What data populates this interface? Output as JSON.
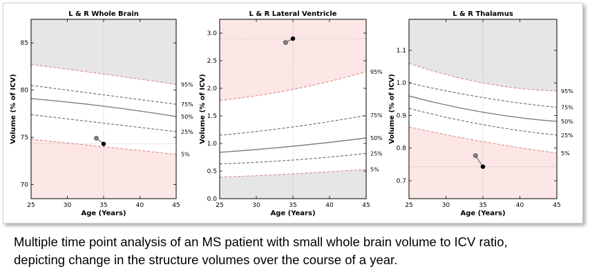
{
  "chart_data": [
    {
      "type": "line",
      "title": "L & R Whole Brain",
      "xlabel": "Age (Years)",
      "ylabel": "Volume (% of ICV)",
      "xlim": [
        25,
        45
      ],
      "ylim": [
        68.5,
        87.5
      ],
      "xticks": [
        25,
        30,
        35,
        40,
        45
      ],
      "yticks": [
        70,
        75,
        80,
        85
      ],
      "ytick_labels": [
        "70",
        "75",
        "80",
        "85"
      ],
      "grid": false,
      "crosshair": {
        "x": 35,
        "y": 74.3
      },
      "percentiles": [
        {
          "name": "95%",
          "values": [
            82.7,
            81.7,
            80.6
          ]
        },
        {
          "name": "75%",
          "values": [
            80.5,
            79.5,
            78.5
          ]
        },
        {
          "name": "50%",
          "values": [
            79.1,
            78.3,
            77.2
          ]
        },
        {
          "name": "25%",
          "values": [
            77.4,
            76.5,
            75.6
          ]
        },
        {
          "name": "5%",
          "values": [
            74.8,
            74.0,
            73.2
          ]
        }
      ],
      "series": [
        {
          "x": [
            34,
            35
          ],
          "y": [
            74.9,
            74.3
          ]
        }
      ]
    },
    {
      "type": "line",
      "title": "L & R Lateral Ventricle",
      "xlabel": "Age (Years)",
      "ylabel": "Volume (% of ICV)",
      "xlim": [
        25,
        45
      ],
      "ylim": [
        0,
        3.25
      ],
      "xticks": [
        25,
        30,
        35,
        40,
        45
      ],
      "yticks": [
        0,
        0.5,
        1,
        1.5,
        2,
        2.5,
        3
      ],
      "ytick_labels": [
        "0.0",
        "0.5",
        "1.0",
        "1.5",
        "2.0",
        "2.5",
        "3.0"
      ],
      "grid": false,
      "crosshair": {
        "x": 35,
        "y": 2.9
      },
      "percentiles": [
        {
          "name": "95%",
          "values": [
            1.78,
            1.98,
            2.3
          ]
        },
        {
          "name": "75%",
          "values": [
            1.15,
            1.3,
            1.51
          ]
        },
        {
          "name": "50%",
          "values": [
            0.84,
            0.95,
            1.1
          ]
        },
        {
          "name": "25%",
          "values": [
            0.63,
            0.7,
            0.82
          ]
        },
        {
          "name": "5%",
          "values": [
            0.39,
            0.45,
            0.53
          ]
        }
      ],
      "series": [
        {
          "x": [
            34,
            35
          ],
          "y": [
            2.83,
            2.9
          ]
        }
      ]
    },
    {
      "type": "line",
      "title": "L & R Thalamus",
      "xlabel": "Age (Years)",
      "ylabel": "Volume (% of ICV)",
      "xlim": [
        25,
        45
      ],
      "ylim": [
        0.645,
        1.195
      ],
      "xticks": [
        25,
        30,
        35,
        40,
        45
      ],
      "yticks": [
        0.7,
        0.8,
        0.9,
        1.0,
        1.1
      ],
      "ytick_labels": [
        "0.7",
        "0.8",
        "0.9",
        "1.0",
        "1.1"
      ],
      "grid": false,
      "crosshair": {
        "x": 35,
        "y": 0.743
      },
      "percentiles": [
        {
          "name": "95%",
          "values": [
            1.06,
            1.0,
            0.975
          ]
        },
        {
          "name": "75%",
          "values": [
            1.0,
            0.955,
            0.925
          ]
        },
        {
          "name": "50%",
          "values": [
            0.96,
            0.91,
            0.882
          ]
        },
        {
          "name": "25%",
          "values": [
            0.922,
            0.872,
            0.84
          ]
        },
        {
          "name": "5%",
          "values": [
            0.865,
            0.82,
            0.785
          ]
        }
      ],
      "series": [
        {
          "x": [
            34,
            35
          ],
          "y": [
            0.777,
            0.743
          ]
        }
      ]
    }
  ],
  "style": {
    "upper_band_color": "#e6e6e6",
    "lower_band_color": "#fde6e6",
    "median_line_color": "#7f7f7f",
    "percentile_line_color": "#666666",
    "first_point_color": "#808080",
    "second_point_color": "#000000",
    "crosshair_color": "#c0c0c0"
  },
  "caption": {
    "line1": "Multiple time point analysis of an MS patient with small whole brain volume to ICV ratio,",
    "line2": "depicting change in the structure volumes over the course of a year."
  }
}
